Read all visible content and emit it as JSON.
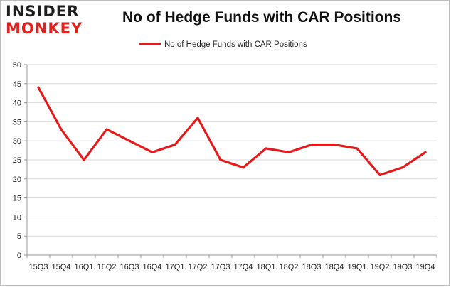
{
  "logo": {
    "line1": "INSIDER",
    "line2": "MONKEY"
  },
  "chart_data": {
    "type": "line",
    "title": "No of Hedge Funds with CAR Positions",
    "categories": [
      "15Q3",
      "15Q4",
      "16Q1",
      "16Q2",
      "16Q3",
      "16Q4",
      "17Q1",
      "17Q2",
      "17Q3",
      "17Q4",
      "18Q1",
      "18Q2",
      "18Q3",
      "18Q4",
      "19Q1",
      "19Q2",
      "19Q3",
      "19Q4"
    ],
    "series": [
      {
        "name": "No of Hedge Funds with CAR Positions",
        "values": [
          44,
          33,
          25,
          33,
          30,
          27,
          29,
          36,
          25,
          23,
          28,
          27,
          29,
          29,
          28,
          21,
          23,
          27
        ],
        "color": "#e8191a"
      }
    ],
    "yticks": [
      0,
      5,
      10,
      15,
      20,
      25,
      30,
      35,
      40,
      45,
      50
    ],
    "ylim": [
      0,
      50
    ],
    "grid": true,
    "legend_position": "top-center",
    "gridColor": "#d9d9d9",
    "axisColor": "#9a9a9a"
  }
}
